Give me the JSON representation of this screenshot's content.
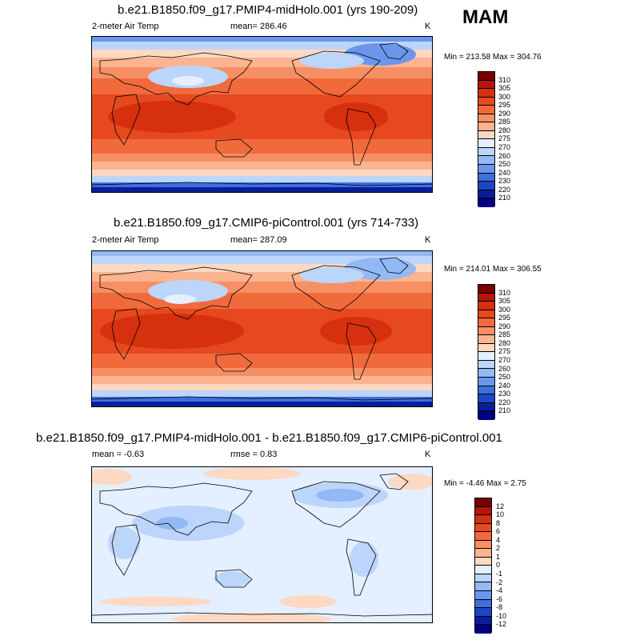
{
  "season": "MAM",
  "panels": [
    {
      "title": "b.e21.B1850.f09_g17.PMIP4-midHolo.001 (yrs 190-209)",
      "variable": "2-meter Air Temp",
      "stat1": "mean= 286.46",
      "stat2": "",
      "units": "K",
      "minmax": "Min = 213.58 Max = 304.76",
      "levels": [
        "310",
        "305",
        "300",
        "295",
        "290",
        "285",
        "280",
        "275",
        "270",
        "260",
        "250",
        "240",
        "230",
        "220",
        "210"
      ],
      "colors": [
        "#7a0000",
        "#b4160b",
        "#d6300f",
        "#e6491f",
        "#f06a3c",
        "#f78f64",
        "#fbb48f",
        "#fdd8c2",
        "#e4efff",
        "#bcd5fb",
        "#92b8f5",
        "#6a97ec",
        "#3d6fe0",
        "#1c45c8",
        "#0a1e9a",
        "#000080"
      ]
    },
    {
      "title": "b.e21.B1850.f09_g17.CMIP6-piControl.001 (yrs 714-733)",
      "variable": "2-meter Air Temp",
      "stat1": "mean= 287.09",
      "stat2": "",
      "units": "K",
      "minmax": "Min = 214.01 Max = 306.55",
      "levels": [
        "310",
        "305",
        "300",
        "295",
        "290",
        "285",
        "280",
        "275",
        "270",
        "260",
        "250",
        "240",
        "230",
        "220",
        "210"
      ],
      "colors": [
        "#7a0000",
        "#b4160b",
        "#d6300f",
        "#e6491f",
        "#f06a3c",
        "#f78f64",
        "#fbb48f",
        "#fdd8c2",
        "#e4efff",
        "#bcd5fb",
        "#92b8f5",
        "#6a97ec",
        "#3d6fe0",
        "#1c45c8",
        "#0a1e9a",
        "#000080"
      ]
    },
    {
      "title": "b.e21.B1850.f09_g17.PMIP4-midHolo.001 - b.e21.B1850.f09_g17.CMIP6-piControl.001",
      "variable": "mean =  -0.63",
      "stat1": "rmse =  0.83",
      "stat2": "",
      "units": "K",
      "minmax": "Min =  -4.46 Max =   2.75",
      "levels": [
        "12",
        "10",
        "8",
        "6",
        "4",
        "2",
        "1",
        "0",
        "-1",
        "-2",
        "-4",
        "-6",
        "-8",
        "-10",
        "-12"
      ],
      "colors": [
        "#7a0000",
        "#b4160b",
        "#d6300f",
        "#e6491f",
        "#f06a3c",
        "#f78f64",
        "#fbb48f",
        "#fdd8c2",
        "#e4efff",
        "#bcd5fb",
        "#92b8f5",
        "#6a97ec",
        "#3d6fe0",
        "#1c45c8",
        "#0a1e9a",
        "#000080"
      ]
    }
  ]
}
